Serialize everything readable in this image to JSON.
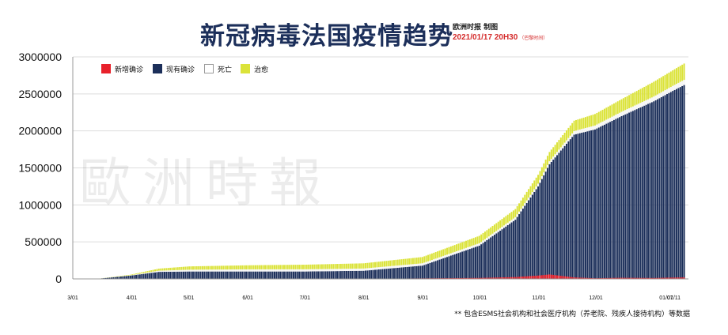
{
  "header": {
    "title": "新冠病毒法国疫情趋势",
    "publisher": "欧洲时报 制图",
    "timestamp": "2021/01/17 20H30",
    "timestamp_note": "（巴黎时间）"
  },
  "watermark": "歐洲時報",
  "footnote": "** 包含ESMS社会机构和社会医疗机构（养老院、残疾人接待机构）等数据",
  "colors": {
    "new_cases": "#e8212b",
    "active_cases": "#1c2f5a",
    "deaths": "#ffffff",
    "recovered": "#dbe33a"
  },
  "chart_data": {
    "type": "bar",
    "stacked": true,
    "x_range": [
      "2020-03-01",
      "2021-01-17"
    ],
    "ylim": [
      0,
      3000000
    ],
    "yticks": [
      0,
      500000,
      1000000,
      1500000,
      2000000,
      2500000,
      3000000
    ],
    "ytick_labels": [
      "0",
      "500000",
      "1000000",
      "1500000",
      "2000000",
      "2500000",
      "3000000"
    ],
    "xtick_labels": [
      {
        "date": "2020-03-01",
        "label": "3/01"
      },
      {
        "date": "2020-04-01",
        "label": "4/01"
      },
      {
        "date": "2020-05-01",
        "label": "5/01"
      },
      {
        "date": "2020-06-01",
        "label": "6/01"
      },
      {
        "date": "2020-07-01",
        "label": "7/01"
      },
      {
        "date": "2020-08-01",
        "label": "8/01"
      },
      {
        "date": "2020-09-01",
        "label": "9/01"
      },
      {
        "date": "2020-10-01",
        "label": "10/01"
      },
      {
        "date": "2020-11-01",
        "label": "11/01"
      },
      {
        "date": "2020-12-01",
        "label": "12/01"
      },
      {
        "date": "2021-01-07",
        "label": "01/07"
      },
      {
        "date": "2021-01-11",
        "label": "01/11"
      }
    ],
    "legend_position": "top-left",
    "grid": true,
    "series": [
      {
        "name": "新增确诊",
        "key": "new_cases"
      },
      {
        "name": "现有确诊",
        "key": "active_cases"
      },
      {
        "name": "死亡",
        "key": "deaths"
      },
      {
        "name": "治愈",
        "key": "recovered"
      }
    ],
    "points": [
      {
        "date": "2020-03-01",
        "new": 0,
        "active": 100,
        "deaths": 0,
        "recovered": 10
      },
      {
        "date": "2020-03-15",
        "new": 900,
        "active": 5000,
        "deaths": 100,
        "recovered": 500
      },
      {
        "date": "2020-03-31",
        "new": 4000,
        "active": 45000,
        "deaths": 3500,
        "recovered": 8000
      },
      {
        "date": "2020-04-15",
        "new": 3000,
        "active": 95000,
        "deaths": 16000,
        "recovered": 28000
      },
      {
        "date": "2020-05-01",
        "new": 1000,
        "active": 100000,
        "deaths": 24000,
        "recovered": 45000
      },
      {
        "date": "2020-06-01",
        "new": 500,
        "active": 100000,
        "deaths": 29000,
        "recovered": 55000
      },
      {
        "date": "2020-07-01",
        "new": 600,
        "active": 100000,
        "deaths": 30000,
        "recovered": 62000
      },
      {
        "date": "2020-08-01",
        "new": 1500,
        "active": 110000,
        "deaths": 30500,
        "recovered": 70000
      },
      {
        "date": "2020-09-01",
        "new": 7000,
        "active": 180000,
        "deaths": 31000,
        "recovered": 85000
      },
      {
        "date": "2020-10-01",
        "new": 13000,
        "active": 450000,
        "deaths": 32000,
        "recovered": 100000
      },
      {
        "date": "2020-10-20",
        "new": 25000,
        "active": 800000,
        "deaths": 34000,
        "recovered": 110000
      },
      {
        "date": "2020-11-01",
        "new": 45000,
        "active": 1250000,
        "deaths": 37000,
        "recovered": 120000
      },
      {
        "date": "2020-11-07",
        "new": 60000,
        "active": 1550000,
        "deaths": 40000,
        "recovered": 125000
      },
      {
        "date": "2020-11-20",
        "new": 20000,
        "active": 1950000,
        "deaths": 48000,
        "recovered": 140000
      },
      {
        "date": "2020-12-01",
        "new": 9000,
        "active": 2020000,
        "deaths": 53000,
        "recovered": 155000
      },
      {
        "date": "2020-12-15",
        "new": 15000,
        "active": 2200000,
        "deaths": 58000,
        "recovered": 170000
      },
      {
        "date": "2021-01-01",
        "new": 12000,
        "active": 2400000,
        "deaths": 64000,
        "recovered": 200000
      },
      {
        "date": "2021-01-11",
        "new": 18000,
        "active": 2540000,
        "deaths": 68000,
        "recovered": 210000
      },
      {
        "date": "2021-01-17",
        "new": 20000,
        "active": 2620000,
        "deaths": 70000,
        "recovered": 220000
      }
    ]
  }
}
